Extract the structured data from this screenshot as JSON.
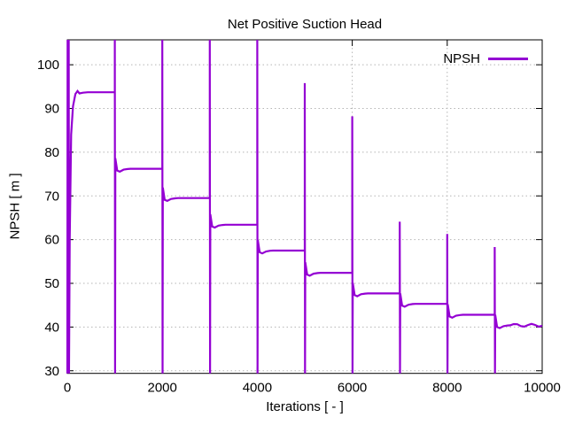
{
  "chart_data": {
    "type": "line",
    "title": "Net Positive Suction Head",
    "xlabel": "Iterations [ - ]",
    "ylabel": "NPSH [ m ]",
    "xlim": [
      0,
      10000
    ],
    "ylim": [
      29.4,
      105.7
    ],
    "xticks": [
      0,
      2000,
      4000,
      6000,
      8000,
      10000
    ],
    "yticks": [
      30,
      40,
      50,
      60,
      70,
      80,
      90,
      100
    ],
    "grid": true,
    "grid_color": "#b5b5b5",
    "legend_position": "top-right",
    "legend": [
      {
        "name": "NPSH",
        "color": "#9400d3"
      }
    ],
    "series": [
      {
        "name": "NPSH",
        "color": "#9400d3",
        "description": "Stepped convergence curve: plateaus lasting 1000 iterations, with a sharp up/down transient spike at every 1000-iteration mark.",
        "segments": [
          {
            "x_start": 0,
            "x_end": 1000,
            "plateau": 93.7,
            "spike_peak": 105.7,
            "spike_low": 29.4,
            "initial": true
          },
          {
            "x_start": 1000,
            "x_end": 2000,
            "plateau": 76.2,
            "spike_peak": 105.7,
            "spike_low": 29.4
          },
          {
            "x_start": 2000,
            "x_end": 3000,
            "plateau": 69.5,
            "spike_peak": 105.7,
            "spike_low": 29.4
          },
          {
            "x_start": 3000,
            "x_end": 4000,
            "plateau": 63.4,
            "spike_peak": 105.7,
            "spike_low": 29.4
          },
          {
            "x_start": 4000,
            "x_end": 5000,
            "plateau": 57.5,
            "spike_peak": 105.7,
            "spike_low": 29.4
          },
          {
            "x_start": 5000,
            "x_end": 6000,
            "plateau": 52.4,
            "spike_peak": 95.8,
            "spike_low": 29.4
          },
          {
            "x_start": 6000,
            "x_end": 7000,
            "plateau": 47.7,
            "spike_peak": 88.2,
            "spike_low": 29.4
          },
          {
            "x_start": 7000,
            "x_end": 8000,
            "plateau": 45.3,
            "spike_peak": 64.1,
            "spike_low": 29.4
          },
          {
            "x_start": 8000,
            "x_end": 9000,
            "plateau": 42.8,
            "spike_peak": 61.3,
            "spike_low": 29.4
          },
          {
            "x_start": 9000,
            "x_end": 10000,
            "plateau": 40.4,
            "spike_peak": 58.3,
            "spike_low": 29.4,
            "ripple": true
          }
        ]
      }
    ]
  }
}
